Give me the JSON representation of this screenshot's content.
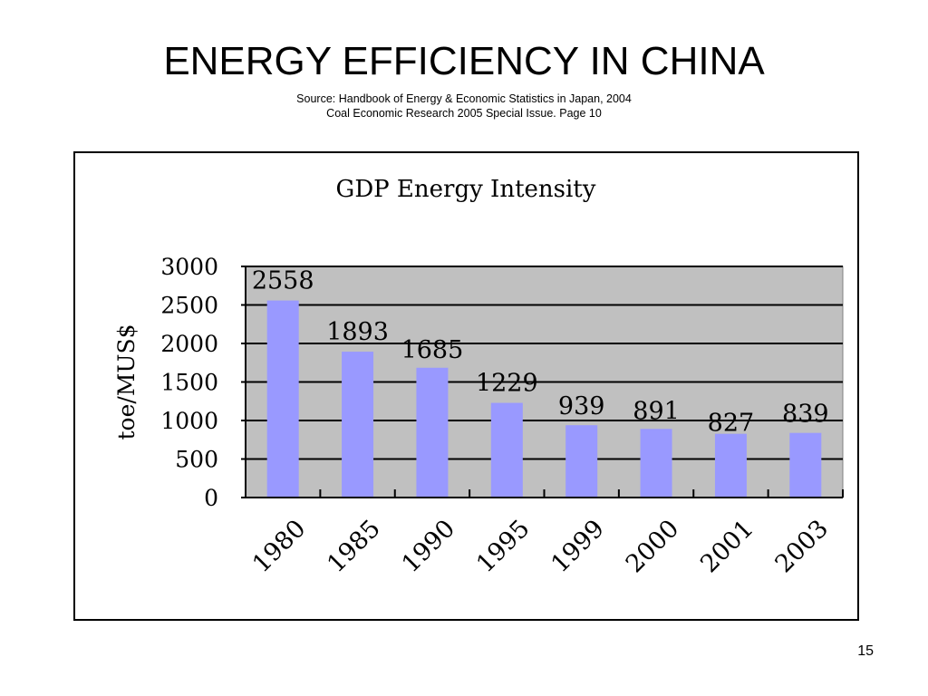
{
  "slide": {
    "title": "ENERGY EFFICIENCY IN CHINA",
    "source_line_1": "Source: Handbook  of Energy & Economic Statistics in Japan, 2004",
    "source_line_2": "Coal Economic Research 2005 Special Issue. Page 10",
    "page_number": "15"
  },
  "chart_data": {
    "type": "bar",
    "title": "GDP Energy Intensity",
    "xlabel": "",
    "ylabel": "toe/MUS$",
    "categories": [
      "1980",
      "1985",
      "1990",
      "1995",
      "1999",
      "2000",
      "2001",
      "2003"
    ],
    "values": [
      2558,
      1893,
      1685,
      1229,
      939,
      891,
      827,
      839
    ],
    "data_labels": [
      "2558",
      "1893",
      "1685",
      "1229",
      "939",
      "891",
      "827",
      "839"
    ],
    "y_ticks": [
      0,
      500,
      1000,
      1500,
      2000,
      2500,
      3000
    ],
    "ylim": [
      0,
      3000
    ],
    "grid": true,
    "legend": "none",
    "colors": {
      "bar": "#9999ff",
      "plot_background": "#c0c0c0",
      "gridline": "#000000"
    }
  }
}
